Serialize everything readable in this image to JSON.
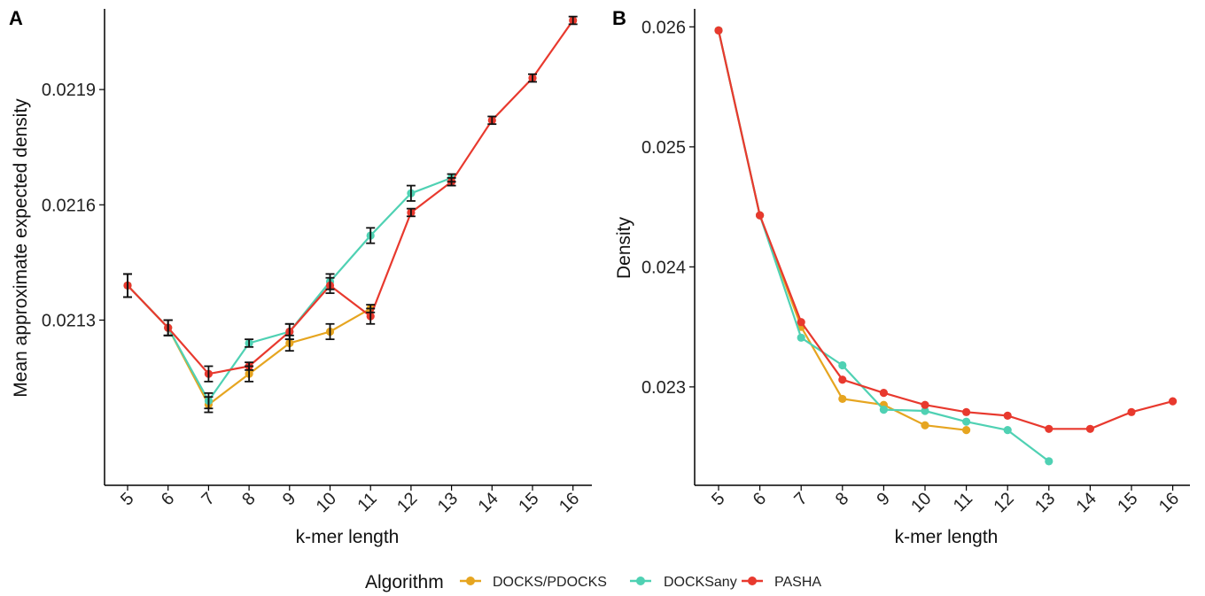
{
  "chart_data": [
    {
      "panel": "A",
      "type": "line",
      "xlabel": "k-mer length",
      "ylabel": "Mean approximate expected density",
      "x": [
        5,
        6,
        7,
        8,
        9,
        10,
        11,
        12,
        13,
        14,
        15,
        16
      ],
      "ylim": [
        0.02087,
        0.02211
      ],
      "yticks": [
        0.0213,
        0.0216,
        0.0219
      ],
      "ytick_labels": [
        "0.0213",
        "0.0216",
        "0.0219"
      ],
      "error_bars": true,
      "grid": false,
      "series": [
        {
          "name": "DOCKS/PDOCKS",
          "color": "#E6A520",
          "values": [
            0.02139,
            0.02128,
            0.02108,
            0.02116,
            0.02124,
            0.02127,
            0.02133,
            null,
            null,
            null,
            null,
            null
          ],
          "errors": [
            3e-05,
            2e-05,
            2e-05,
            2e-05,
            2e-05,
            2e-05,
            1e-05,
            null,
            null,
            null,
            null,
            null
          ]
        },
        {
          "name": "DOCKSany",
          "color": "#4FD1B3",
          "values": [
            0.02139,
            0.02128,
            0.02109,
            0.02124,
            0.02127,
            0.0214,
            0.02152,
            0.02163,
            0.02167,
            null,
            null,
            null
          ],
          "errors": [
            3e-05,
            2e-05,
            2e-05,
            1e-05,
            2e-05,
            2e-05,
            2e-05,
            2e-05,
            1e-05,
            null,
            null,
            null
          ]
        },
        {
          "name": "PASHA",
          "color": "#E8392E",
          "values": [
            0.02139,
            0.02128,
            0.02116,
            0.02118,
            0.02127,
            0.02139,
            0.02131,
            0.02158,
            0.02166,
            0.02182,
            0.02193,
            0.02208
          ],
          "errors": [
            3e-05,
            2e-05,
            2e-05,
            1e-05,
            2e-05,
            2e-05,
            2e-05,
            1e-05,
            1e-05,
            1e-05,
            1e-05,
            1e-05
          ]
        }
      ]
    },
    {
      "panel": "B",
      "type": "line",
      "xlabel": "k-mer length",
      "ylabel": "Density",
      "x": [
        5,
        6,
        7,
        8,
        9,
        10,
        11,
        12,
        13,
        14,
        15,
        16
      ],
      "ylim": [
        0.02218,
        0.02615
      ],
      "yticks": [
        0.023,
        0.024,
        0.025,
        0.026
      ],
      "ytick_labels": [
        "0.023",
        "0.024",
        "0.025",
        "0.026"
      ],
      "error_bars": false,
      "grid": false,
      "series": [
        {
          "name": "DOCKS/PDOCKS",
          "color": "#E6A520",
          "values": [
            0.02597,
            0.02443,
            0.0235,
            0.0229,
            0.02285,
            0.02268,
            0.02264,
            null,
            null,
            null,
            null,
            null
          ]
        },
        {
          "name": "DOCKSany",
          "color": "#4FD1B3",
          "values": [
            0.02597,
            0.02443,
            0.02341,
            0.02318,
            0.02281,
            0.0228,
            0.02271,
            0.02264,
            0.02238,
            null,
            null,
            null
          ]
        },
        {
          "name": "PASHA",
          "color": "#E8392E",
          "values": [
            0.02597,
            0.02443,
            0.02354,
            0.02306,
            0.02295,
            0.02285,
            0.02279,
            0.02276,
            0.02265,
            0.02265,
            0.02279,
            0.02288
          ]
        }
      ]
    }
  ],
  "panels": {
    "a": {
      "label": "A",
      "xlabel": "k-mer length",
      "ylabel": "Mean approximate expected density"
    },
    "b": {
      "label": "B",
      "xlabel": "k-mer length",
      "ylabel": "Density"
    }
  },
  "legend": {
    "title": "Algorithm",
    "placement": "bottom",
    "items": [
      {
        "label": "DOCKS/PDOCKS",
        "color": "#E6A520"
      },
      {
        "label": "DOCKSany",
        "color": "#4FD1B3"
      },
      {
        "label": "PASHA",
        "color": "#E8392E"
      }
    ]
  }
}
